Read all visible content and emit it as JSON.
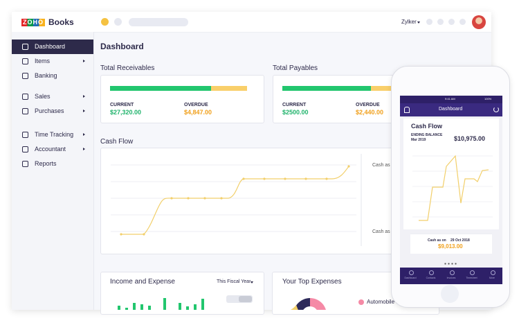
{
  "logo": {
    "zoho": "ZOHO",
    "books": "Books"
  },
  "org": "Zylker",
  "sidebar": [
    "Dashboard",
    "Items",
    "Banking",
    "Sales",
    "Purchases",
    "Time Tracking",
    "Accountant",
    "Reports"
  ],
  "page_title": "Dashboard",
  "receivables": {
    "title": "Total Receivables",
    "current_label": "CURRENT",
    "current": "$27,320.00",
    "overdue_label": "OVERDUE",
    "overdue": "$4,847.00"
  },
  "payables": {
    "title": "Total Payables",
    "current_label": "CURRENT",
    "current": "$2500.00",
    "overdue_label": "OVERDUE",
    "overdue": "$2,440.00"
  },
  "cash_flow": {
    "title": "Cash Flow",
    "labels": [
      "Cash as o",
      "Cash as o"
    ]
  },
  "income": {
    "title": "Income and Expense",
    "period": "This Fiscal Year"
  },
  "expenses": {
    "title": "Your Top Expenses",
    "legend": "Automobile E"
  },
  "phone": {
    "time": "9:41 AM",
    "battery": "100%",
    "header": "Dashboard",
    "title": "Cash Flow",
    "ending_label": "ENDING BALANCE",
    "ending_date": "Mar 2019",
    "ending_value": "$10,975.00",
    "cash_on_label": "Cash as on",
    "cash_on_date": "29 Oct 2018",
    "cash_on_value": "$9,013.00",
    "tabs": [
      "Dashboard",
      "Contacts",
      "Invoices",
      "Timesheet",
      "More"
    ]
  }
}
